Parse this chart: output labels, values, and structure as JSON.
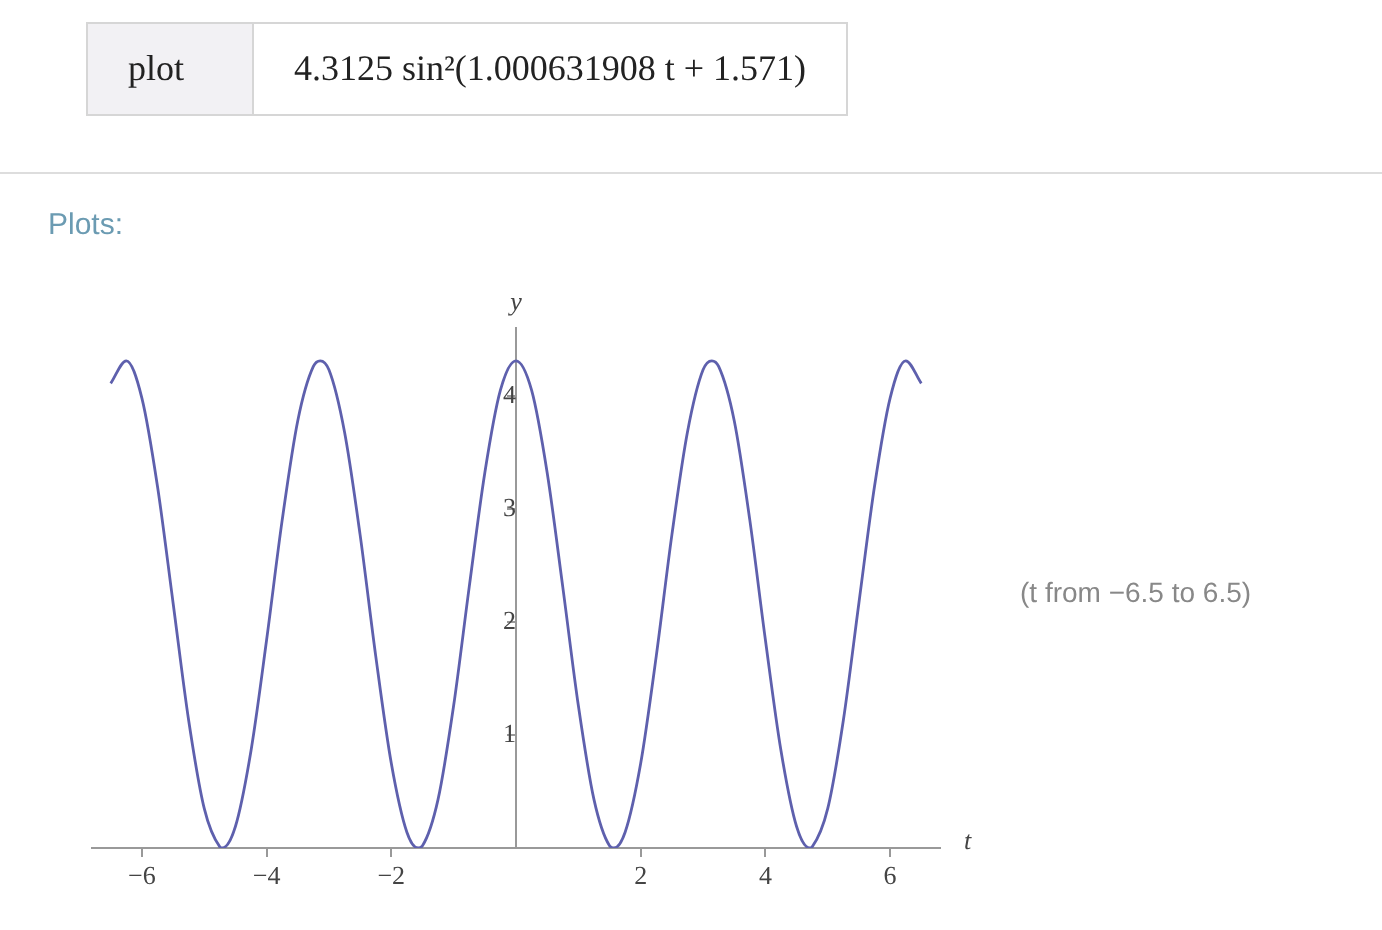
{
  "chart_data": {
    "type": "line",
    "x": [
      -6.5,
      -6.25,
      -6,
      -5.75,
      -5.5,
      -5.25,
      -5,
      -4.75,
      -4.71,
      -4.5,
      -4.25,
      -4,
      -3.75,
      -3.5,
      -3.25,
      -3.14,
      -3,
      -2.75,
      -2.5,
      -2.25,
      -2,
      -1.75,
      -1.57,
      -1.5,
      -1.25,
      -1,
      -0.75,
      -0.5,
      -0.25,
      0,
      0.25,
      0.5,
      0.75,
      1,
      1.25,
      1.5,
      1.57,
      1.75,
      2,
      2.25,
      2.5,
      2.75,
      3,
      3.14,
      3.25,
      3.5,
      3.75,
      4,
      4.25,
      4.5,
      4.71,
      4.75,
      5,
      5.25,
      5.5,
      5.75,
      6,
      6.25,
      6.5
    ],
    "series": [
      {
        "color": "#5e60ad",
        "values": [
          4.11,
          4.31,
          3.98,
          3.2,
          2.17,
          1.13,
          0.35,
          0.01,
          0,
          0.19,
          0.86,
          1.84,
          2.9,
          3.78,
          4.26,
          4.31,
          4.23,
          3.68,
          2.77,
          1.7,
          0.75,
          0.14,
          0,
          0.02,
          0.43,
          1.26,
          2.31,
          3.32,
          4.05,
          4.31,
          4.05,
          3.32,
          2.31,
          1.26,
          0.43,
          0.02,
          0,
          0.14,
          0.75,
          1.7,
          2.77,
          3.68,
          4.23,
          4.31,
          4.26,
          3.78,
          2.9,
          1.84,
          0.86,
          0.19,
          0,
          0.01,
          0.35,
          1.13,
          2.17,
          3.2,
          3.98,
          4.31,
          4.11
        ]
      }
    ],
    "xlim": [
      -6.8,
      6.8
    ],
    "ylim": [
      0,
      4.6
    ],
    "xticks": [
      -6,
      -4,
      -2,
      2,
      4,
      6
    ],
    "yticks": [
      1,
      2,
      3,
      4
    ],
    "xlabel": "t",
    "ylabel": "y",
    "marker": "none",
    "grid": false,
    "line_style": "solid",
    "annotations": [
      "plot",
      "4.3125 sin²(1.000631908 t + 1.571)",
      "Plots:",
      "(t from −6.5 to 6.5)"
    ]
  }
}
